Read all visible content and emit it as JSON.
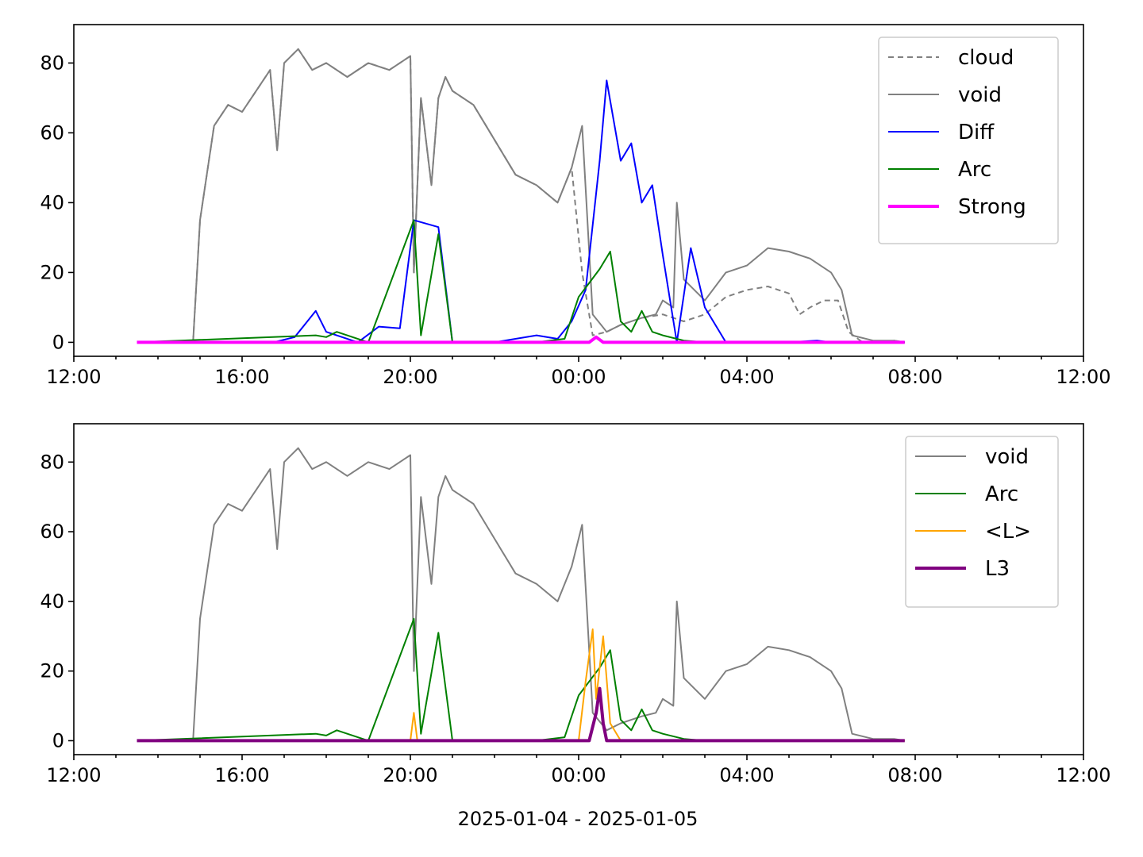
{
  "chart_data": [
    {
      "type": "line",
      "xlabel": "",
      "ylabel": "",
      "xlim": [
        "2025-01-04 12:00",
        "2025-01-05 12:00"
      ],
      "ylim": [
        -4,
        91
      ],
      "yticks": [
        0,
        20,
        40,
        60,
        80
      ],
      "xticks": [
        "12:00",
        "16:00",
        "20:00",
        "00:00",
        "04:00",
        "08:00",
        "12:00"
      ],
      "grid": false,
      "legend_position": "upper right",
      "series": [
        {
          "name": "cloud",
          "color": "#808080",
          "style": "dashed",
          "x": [
            "2025-01-04 13:30",
            "2025-01-04 14:50",
            "2025-01-04 15:00",
            "2025-01-04 15:20",
            "2025-01-04 15:40",
            "2025-01-04 16:00",
            "2025-01-04 16:20",
            "2025-01-04 16:40",
            "2025-01-04 16:50",
            "2025-01-04 17:00",
            "2025-01-04 17:20",
            "2025-01-04 17:40",
            "2025-01-04 18:00",
            "2025-01-04 18:30",
            "2025-01-04 19:00",
            "2025-01-04 19:30",
            "2025-01-04 20:00",
            "2025-01-04 20:05",
            "2025-01-04 20:15",
            "2025-01-04 20:30",
            "2025-01-04 20:40",
            "2025-01-04 20:50",
            "2025-01-04 21:00",
            "2025-01-04 21:30",
            "2025-01-04 22:00",
            "2025-01-04 22:30",
            "2025-01-04 23:00",
            "2025-01-04 23:30",
            "2025-01-04 23:50",
            "2025-01-05 00:05",
            "2025-01-05 00:20",
            "2025-01-05 00:40",
            "2025-01-05 01:00",
            "2025-01-05 01:30",
            "2025-01-05 02:00",
            "2025-01-05 02:30",
            "2025-01-05 03:00",
            "2025-01-05 03:30",
            "2025-01-05 04:00",
            "2025-01-05 04:30",
            "2025-01-05 05:00",
            "2025-01-05 05:15",
            "2025-01-05 05:30",
            "2025-01-05 05:50",
            "2025-01-05 06:10",
            "2025-01-05 06:25",
            "2025-01-05 06:45",
            "2025-01-05 07:30",
            "2025-01-05 07:45"
          ],
          "y": [
            0,
            0,
            35,
            62,
            68,
            66,
            72,
            78,
            55,
            80,
            84,
            78,
            80,
            76,
            80,
            78,
            82,
            20,
            70,
            45,
            70,
            76,
            72,
            68,
            58,
            48,
            45,
            40,
            50,
            20,
            2,
            3,
            5,
            7,
            8,
            6,
            8,
            13,
            15,
            16,
            14,
            8,
            10,
            12,
            12,
            3,
            0,
            0.5,
            0
          ]
        },
        {
          "name": "void",
          "color": "#808080",
          "style": "solid",
          "x": [
            "2025-01-04 13:30",
            "2025-01-04 14:50",
            "2025-01-04 15:00",
            "2025-01-04 15:20",
            "2025-01-04 15:40",
            "2025-01-04 16:00",
            "2025-01-04 16:20",
            "2025-01-04 16:40",
            "2025-01-04 16:50",
            "2025-01-04 17:00",
            "2025-01-04 17:20",
            "2025-01-04 17:40",
            "2025-01-04 18:00",
            "2025-01-04 18:30",
            "2025-01-04 19:00",
            "2025-01-04 19:30",
            "2025-01-04 20:00",
            "2025-01-04 20:05",
            "2025-01-04 20:15",
            "2025-01-04 20:30",
            "2025-01-04 20:40",
            "2025-01-04 20:50",
            "2025-01-04 21:00",
            "2025-01-04 21:30",
            "2025-01-04 22:00",
            "2025-01-04 22:30",
            "2025-01-04 23:00",
            "2025-01-04 23:30",
            "2025-01-04 23:50",
            "2025-01-05 00:05",
            "2025-01-05 00:20",
            "2025-01-05 00:40",
            "2025-01-05 01:00",
            "2025-01-05 01:30",
            "2025-01-05 01:50",
            "2025-01-05 02:00",
            "2025-01-05 02:15",
            "2025-01-05 02:20",
            "2025-01-05 02:30",
            "2025-01-05 03:00",
            "2025-01-05 03:30",
            "2025-01-05 04:00",
            "2025-01-05 04:30",
            "2025-01-05 05:00",
            "2025-01-05 05:30",
            "2025-01-05 06:00",
            "2025-01-05 06:15",
            "2025-01-05 06:30",
            "2025-01-05 07:00",
            "2025-01-05 07:30",
            "2025-01-05 07:45"
          ],
          "y": [
            0,
            0,
            35,
            62,
            68,
            66,
            72,
            78,
            55,
            80,
            84,
            78,
            80,
            76,
            80,
            78,
            82,
            20,
            70,
            45,
            70,
            76,
            72,
            68,
            58,
            48,
            45,
            40,
            50,
            62,
            8,
            3,
            5,
            7,
            8,
            12,
            10,
            40,
            18,
            12,
            20,
            22,
            27,
            26,
            24,
            20,
            15,
            2,
            0.5,
            0.5,
            0
          ]
        },
        {
          "name": "Diff",
          "color": "#0000ff",
          "style": "solid",
          "x": [
            "2025-01-04 13:30",
            "2025-01-04 16:45",
            "2025-01-04 17:15",
            "2025-01-04 17:45",
            "2025-01-04 18:00",
            "2025-01-04 18:45",
            "2025-01-04 19:15",
            "2025-01-04 19:45",
            "2025-01-04 20:05",
            "2025-01-04 20:40",
            "2025-01-04 21:00",
            "2025-01-04 22:00",
            "2025-01-04 23:00",
            "2025-01-04 23:30",
            "2025-01-04 23:50",
            "2025-01-05 00:10",
            "2025-01-05 00:30",
            "2025-01-05 00:40",
            "2025-01-05 01:00",
            "2025-01-05 01:15",
            "2025-01-05 01:30",
            "2025-01-05 01:45",
            "2025-01-05 02:00",
            "2025-01-05 02:20",
            "2025-01-05 02:40",
            "2025-01-05 03:00",
            "2025-01-05 03:30",
            "2025-01-05 04:00",
            "2025-01-05 05:00",
            "2025-01-05 05:40",
            "2025-01-05 06:00",
            "2025-01-05 07:00",
            "2025-01-05 07:45"
          ],
          "y": [
            0,
            0,
            1.5,
            9,
            3,
            0,
            4.5,
            4,
            35,
            33,
            0,
            0,
            2,
            1,
            6,
            15,
            52,
            75,
            52,
            57,
            40,
            45,
            25,
            0,
            27,
            10,
            0,
            0,
            0,
            0.5,
            0,
            0,
            0
          ]
        },
        {
          "name": "Arc",
          "color": "#008000",
          "style": "solid",
          "x": [
            "2025-01-04 13:30",
            "2025-01-04 17:45",
            "2025-01-04 18:00",
            "2025-01-04 18:15",
            "2025-01-04 19:00",
            "2025-01-04 20:05",
            "2025-01-04 20:15",
            "2025-01-04 20:40",
            "2025-01-04 21:00",
            "2025-01-04 23:00",
            "2025-01-04 23:40",
            "2025-01-05 00:00",
            "2025-01-05 00:15",
            "2025-01-05 00:30",
            "2025-01-05 00:45",
            "2025-01-05 01:00",
            "2025-01-05 01:15",
            "2025-01-05 01:30",
            "2025-01-05 01:45",
            "2025-01-05 02:00",
            "2025-01-05 02:30",
            "2025-01-05 03:00",
            "2025-01-05 04:00",
            "2025-01-05 07:45"
          ],
          "y": [
            0,
            2,
            1.5,
            3,
            0,
            35,
            2,
            31,
            0,
            0,
            1,
            13,
            17,
            21,
            26,
            6,
            3,
            9,
            3,
            2,
            0.5,
            0,
            0,
            0
          ]
        },
        {
          "name": "Strong",
          "color": "#ff00ff",
          "style": "solid",
          "x": [
            "2025-01-04 13:30",
            "2025-01-05 00:15",
            "2025-01-05 00:25",
            "2025-01-05 00:35",
            "2025-01-05 07:45"
          ],
          "y": [
            0,
            0,
            1.5,
            0,
            0
          ]
        }
      ]
    },
    {
      "type": "line",
      "xlabel": "2025-01-04 - 2025-01-05",
      "ylabel": "",
      "xlim": [
        "2025-01-04 12:00",
        "2025-01-05 12:00"
      ],
      "ylim": [
        -4,
        91
      ],
      "yticks": [
        0,
        20,
        40,
        60,
        80
      ],
      "xticks": [
        "12:00",
        "16:00",
        "20:00",
        "00:00",
        "04:00",
        "08:00",
        "12:00"
      ],
      "grid": false,
      "legend_position": "upper right",
      "series": [
        {
          "name": "void",
          "color": "#808080",
          "style": "solid",
          "x": [
            "2025-01-04 13:30",
            "2025-01-04 14:50",
            "2025-01-04 15:00",
            "2025-01-04 15:20",
            "2025-01-04 15:40",
            "2025-01-04 16:00",
            "2025-01-04 16:20",
            "2025-01-04 16:40",
            "2025-01-04 16:50",
            "2025-01-04 17:00",
            "2025-01-04 17:20",
            "2025-01-04 17:40",
            "2025-01-04 18:00",
            "2025-01-04 18:30",
            "2025-01-04 19:00",
            "2025-01-04 19:30",
            "2025-01-04 20:00",
            "2025-01-04 20:05",
            "2025-01-04 20:15",
            "2025-01-04 20:30",
            "2025-01-04 20:40",
            "2025-01-04 20:50",
            "2025-01-04 21:00",
            "2025-01-04 21:30",
            "2025-01-04 22:00",
            "2025-01-04 22:30",
            "2025-01-04 23:00",
            "2025-01-04 23:30",
            "2025-01-04 23:50",
            "2025-01-05 00:05",
            "2025-01-05 00:20",
            "2025-01-05 00:40",
            "2025-01-05 01:00",
            "2025-01-05 01:30",
            "2025-01-05 01:50",
            "2025-01-05 02:00",
            "2025-01-05 02:15",
            "2025-01-05 02:20",
            "2025-01-05 02:30",
            "2025-01-05 03:00",
            "2025-01-05 03:30",
            "2025-01-05 04:00",
            "2025-01-05 04:30",
            "2025-01-05 05:00",
            "2025-01-05 05:30",
            "2025-01-05 06:00",
            "2025-01-05 06:15",
            "2025-01-05 06:30",
            "2025-01-05 07:00",
            "2025-01-05 07:30",
            "2025-01-05 07:45"
          ],
          "y": [
            0,
            0,
            35,
            62,
            68,
            66,
            72,
            78,
            55,
            80,
            84,
            78,
            80,
            76,
            80,
            78,
            82,
            20,
            70,
            45,
            70,
            76,
            72,
            68,
            58,
            48,
            45,
            40,
            50,
            62,
            8,
            3,
            5,
            7,
            8,
            12,
            10,
            40,
            18,
            12,
            20,
            22,
            27,
            26,
            24,
            20,
            15,
            2,
            0.5,
            0.5,
            0
          ]
        },
        {
          "name": "Arc",
          "color": "#008000",
          "style": "solid",
          "x": [
            "2025-01-04 13:30",
            "2025-01-04 17:45",
            "2025-01-04 18:00",
            "2025-01-04 18:15",
            "2025-01-04 19:00",
            "2025-01-04 20:05",
            "2025-01-04 20:15",
            "2025-01-04 20:40",
            "2025-01-04 21:00",
            "2025-01-04 23:00",
            "2025-01-04 23:40",
            "2025-01-05 00:00",
            "2025-01-05 00:15",
            "2025-01-05 00:30",
            "2025-01-05 00:45",
            "2025-01-05 01:00",
            "2025-01-05 01:15",
            "2025-01-05 01:30",
            "2025-01-05 01:45",
            "2025-01-05 02:00",
            "2025-01-05 02:30",
            "2025-01-05 03:00",
            "2025-01-05 04:00",
            "2025-01-05 07:45"
          ],
          "y": [
            0,
            2,
            1.5,
            3,
            0,
            35,
            2,
            31,
            0,
            0,
            1,
            13,
            17,
            21,
            26,
            6,
            3,
            9,
            3,
            2,
            0.5,
            0,
            0,
            0
          ]
        },
        {
          "name": "<L>",
          "color": "#ffa500",
          "style": "solid",
          "x": [
            "2025-01-04 13:30",
            "2025-01-04 20:00",
            "2025-01-04 20:05",
            "2025-01-04 20:10",
            "2025-01-05 00:00",
            "2025-01-05 00:10",
            "2025-01-05 00:20",
            "2025-01-05 00:25",
            "2025-01-05 00:35",
            "2025-01-05 00:45",
            "2025-01-05 01:00",
            "2025-01-05 07:45"
          ],
          "y": [
            0,
            0,
            8,
            0,
            0,
            17,
            32,
            12,
            30,
            5,
            0,
            0
          ]
        },
        {
          "name": "L3",
          "color": "#800080",
          "style": "solid",
          "x": [
            "2025-01-04 13:30",
            "2025-01-05 00:15",
            "2025-01-05 00:25",
            "2025-01-05 00:30",
            "2025-01-05 00:35",
            "2025-01-05 00:40",
            "2025-01-05 07:45"
          ],
          "y": [
            0,
            0,
            8,
            15,
            5,
            0,
            0
          ]
        }
      ]
    }
  ]
}
